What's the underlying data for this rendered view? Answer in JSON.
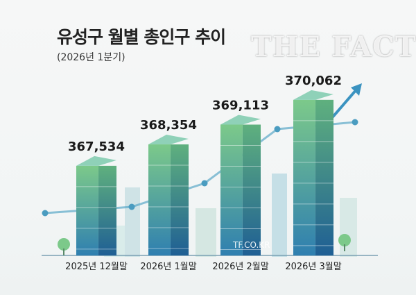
{
  "chart_data": {
    "type": "bar",
    "title": "유성구 월별 총인구 추이",
    "subtitle": "(2026년 1분기)",
    "categories": [
      "2025년 12월말",
      "2026년 1월말",
      "2026년 2월말",
      "2026년 3월말"
    ],
    "values": [
      367534,
      368354,
      369113,
      370062
    ],
    "value_labels": [
      "367,534",
      "368,354",
      "369,113",
      "370,062"
    ],
    "xlabel": "",
    "ylabel": "",
    "grid": false,
    "colors": {
      "bar_top": "#7cc98a",
      "bar_bottom": "#2f7fb0",
      "trend": "#4a9cc0"
    }
  },
  "watermark": {
    "text": "THE FACT",
    "site": "TF.CO.KR"
  }
}
